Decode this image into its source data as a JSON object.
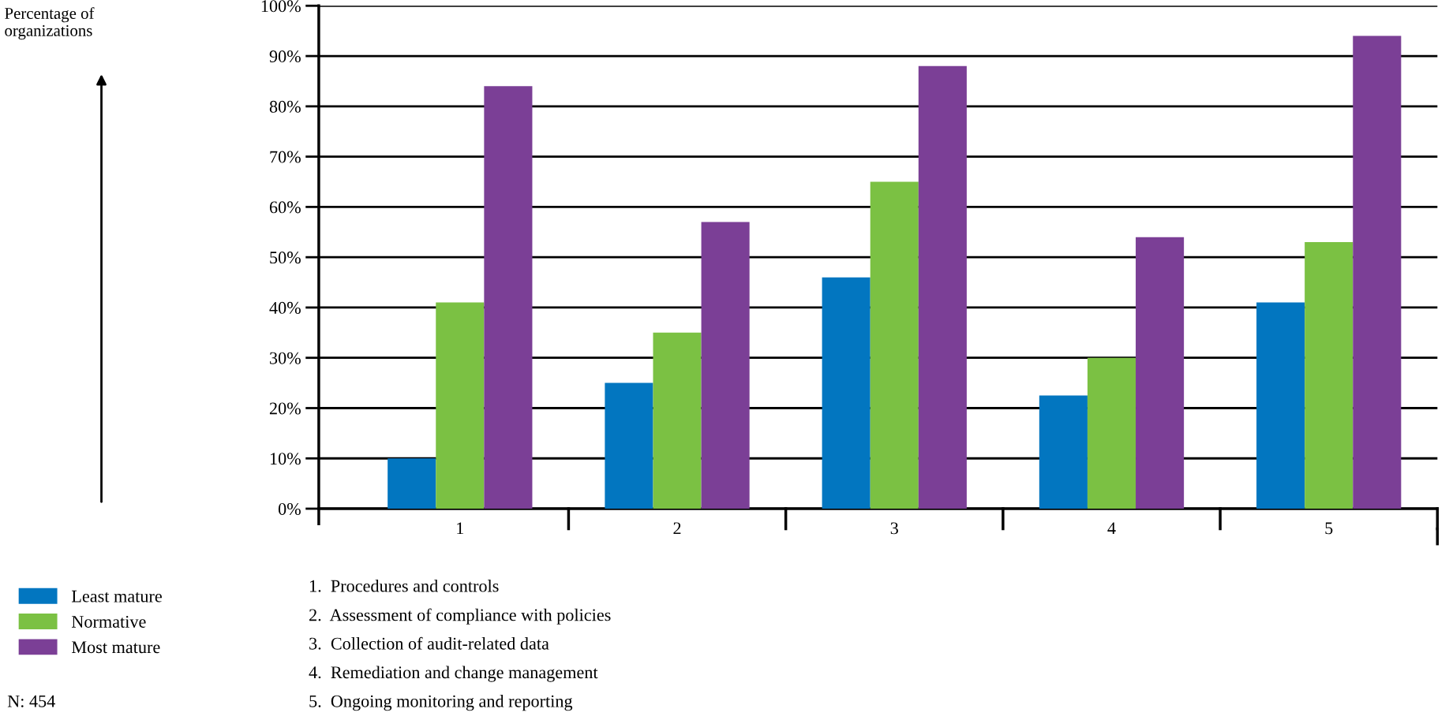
{
  "chart_data": {
    "type": "bar",
    "categories": [
      "1",
      "2",
      "3",
      "4",
      "5"
    ],
    "series": [
      {
        "name": "Least mature",
        "color": "#0276c0",
        "values": [
          10,
          25,
          46,
          22.5,
          41
        ]
      },
      {
        "name": "Normative",
        "color": "#7bc143",
        "values": [
          41,
          35,
          65,
          30,
          53
        ]
      },
      {
        "name": "Most mature",
        "color": "#7b3f96",
        "values": [
          84,
          57,
          88,
          54,
          94
        ]
      }
    ],
    "ylim": [
      0,
      100
    ],
    "yticks": [
      {
        "value": 0,
        "label": "0%"
      },
      {
        "value": 10,
        "label": "10%"
      },
      {
        "value": 20,
        "label": "20%"
      },
      {
        "value": 30,
        "label": "30%"
      },
      {
        "value": 40,
        "label": "40%"
      },
      {
        "value": 50,
        "label": "50%"
      },
      {
        "value": 60,
        "label": "60%"
      },
      {
        "value": 70,
        "label": "70%"
      },
      {
        "value": 80,
        "label": "80%"
      },
      {
        "value": 90,
        "label": "90%"
      },
      {
        "value": 100,
        "label": "100%"
      }
    ],
    "grid": "y",
    "legend": "bottom left",
    "annotations": [
      "Percentage of\norganizations",
      "1.  Procedures and controls",
      "2.  Assessment of compliance with policies",
      "3.  Collection of audit-related data",
      "4.  Remediation and change management",
      "5.  Ongoing monitoring and reporting",
      "N: 454"
    ]
  }
}
